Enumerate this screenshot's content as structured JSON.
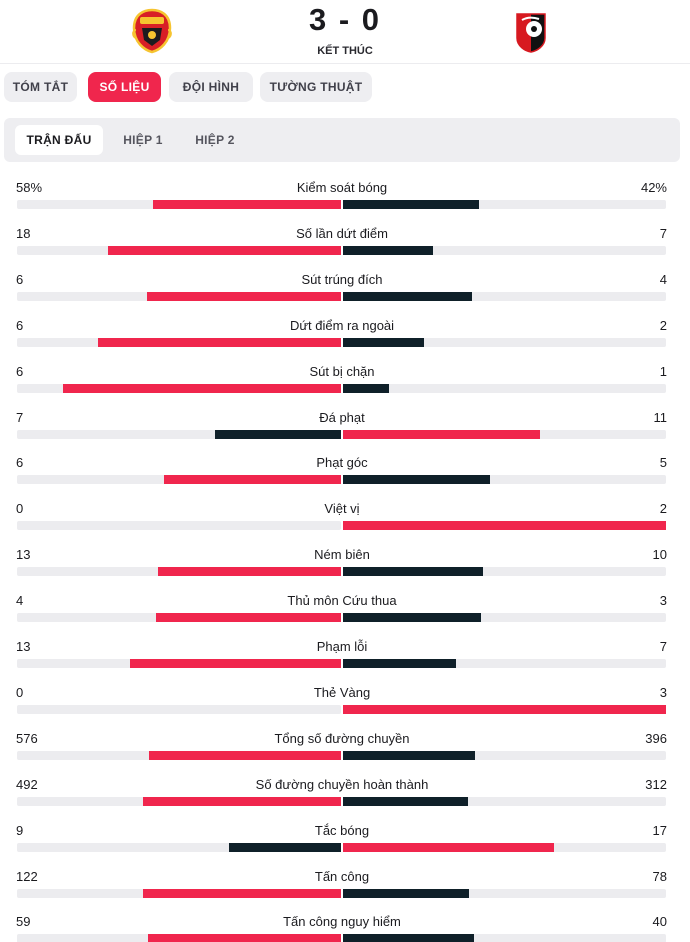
{
  "match": {
    "score": "3 - 0",
    "status": "KẾT THÚC",
    "home_crest": "manchester-united-crest",
    "away_crest": "bournemouth-crest"
  },
  "tabs": [
    {
      "label": "TÓM TẮT",
      "active": false
    },
    {
      "label": "SỐ LIỆU",
      "active": true
    },
    {
      "label": "ĐỘI HÌNH",
      "active": false
    },
    {
      "label": "TƯỜNG THUẬT",
      "active": false
    }
  ],
  "periods": [
    {
      "label": "TRẬN ĐẤU",
      "active": true
    },
    {
      "label": "HIỆP 1",
      "active": false
    },
    {
      "label": "HIỆP 2",
      "active": false
    }
  ],
  "colors": {
    "accent": "#f0264d",
    "dark": "#0f2029",
    "track": "#ececef"
  },
  "stats": [
    {
      "name": "Kiểm soát bóng",
      "home": "58%",
      "away": "42%",
      "home_share": 0.58,
      "away_share": 0.42
    },
    {
      "name": "Số lần dứt điểm",
      "home": "18",
      "away": "7"
    },
    {
      "name": "Sút trúng đích",
      "home": "6",
      "away": "4"
    },
    {
      "name": "Dứt điểm ra ngoài",
      "home": "6",
      "away": "2"
    },
    {
      "name": "Sút bị chặn",
      "home": "6",
      "away": "1"
    },
    {
      "name": "Đá phạt",
      "home": "7",
      "away": "11"
    },
    {
      "name": "Phạt góc",
      "home": "6",
      "away": "5"
    },
    {
      "name": "Việt vị",
      "home": "0",
      "away": "2"
    },
    {
      "name": "Ném biên",
      "home": "13",
      "away": "10"
    },
    {
      "name": "Thủ môn Cứu thua",
      "home": "4",
      "away": "3"
    },
    {
      "name": "Phạm lỗi",
      "home": "13",
      "away": "7"
    },
    {
      "name": "Thẻ Vàng",
      "home": "0",
      "away": "3"
    },
    {
      "name": "Tổng số đường chuyền",
      "home": "576",
      "away": "396"
    },
    {
      "name": "Số đường chuyền hoàn thành",
      "home": "492",
      "away": "312"
    },
    {
      "name": "Tắc bóng",
      "home": "9",
      "away": "17"
    },
    {
      "name": "Tấn công",
      "home": "122",
      "away": "78"
    },
    {
      "name": "Tấn công nguy hiểm",
      "home": "59",
      "away": "40"
    }
  ]
}
